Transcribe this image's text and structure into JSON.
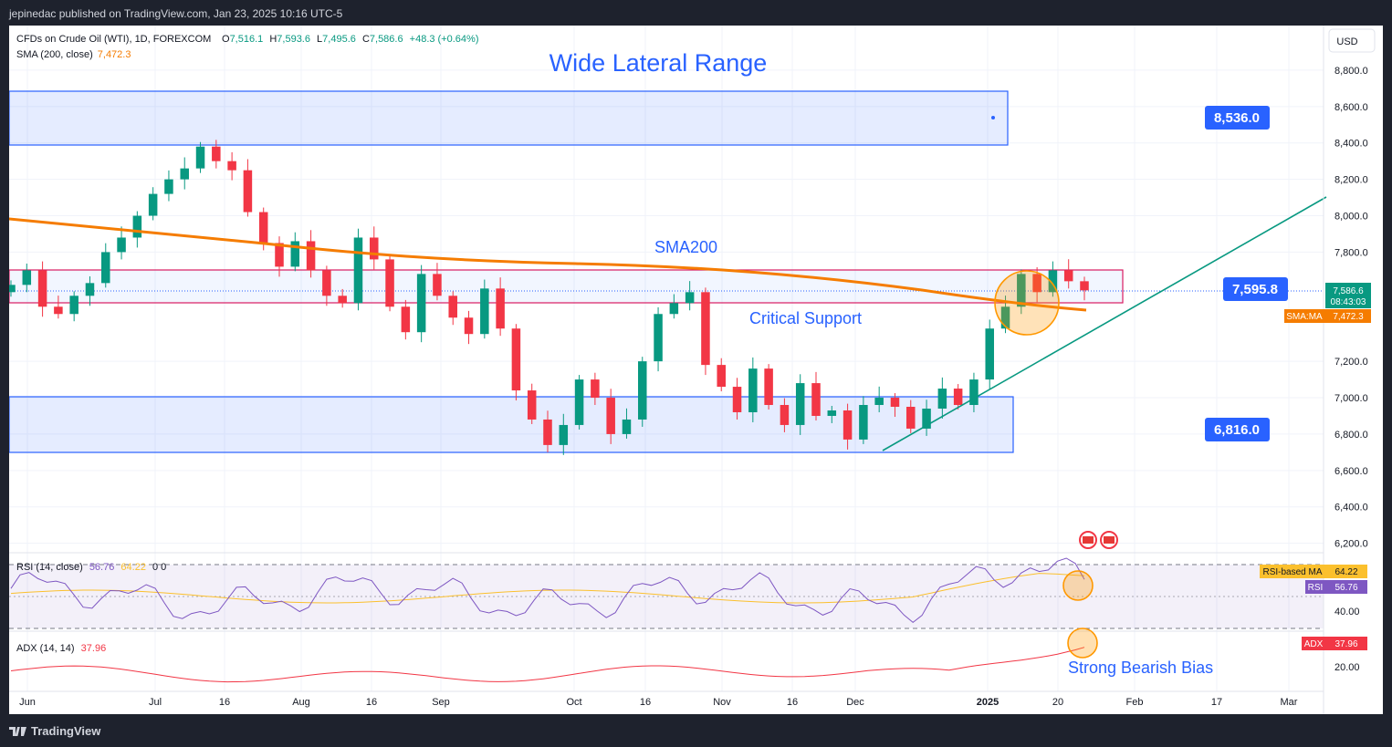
{
  "header": {
    "publisher": "jepinedac published on TradingView.com, Jan 23, 2025 10:16 UTC-5"
  },
  "legend": {
    "symbol": "CFDs on Crude Oil (WTI), 1D, FOREXCOM",
    "o_label": "O",
    "o": "7,516.1",
    "h_label": "H",
    "h": "7,593.6",
    "l_label": "L",
    "l": "7,495.6",
    "c_label": "C",
    "c": "7,586.6",
    "change": "+48.3 (+0.64%)",
    "sma_label": "SMA (200, close)",
    "sma_value": "7,472.3"
  },
  "annotations": {
    "title": "Wide Lateral Range",
    "sma200": "SMA200",
    "critical_support": "Critical Support",
    "strong_bias": "Strong Bearish Bias",
    "level_top": "8,536.0",
    "level_mid": "7,595.8",
    "level_bottom": "6,816.0"
  },
  "price_axis": {
    "currency": "USD",
    "ticks": [
      "8,800.0",
      "8,600.0",
      "8,400.0",
      "8,200.0",
      "8,000.0",
      "7,800.0",
      "7,200.0",
      "7,000.0",
      "6,800.0",
      "6,600.0",
      "6,400.0",
      "6,200.0"
    ],
    "last_price": "7,586.6",
    "countdown": "08:43:03",
    "sma_tag_label": "SMA:MA",
    "sma_tag_value": "7,472.3"
  },
  "rsi": {
    "label": "RSI (14, close)",
    "value": "56.76",
    "ma_value": "64.22",
    "extra": "0  0",
    "ma_tag_label": "RSI-based MA",
    "ma_tag_value": "64.22",
    "tag_label": "RSI",
    "tag_value": "56.76",
    "tick_40": "40.00"
  },
  "adx": {
    "label": "ADX (14, 14)",
    "value": "37.96",
    "tag_label": "ADX",
    "tag_value": "37.96",
    "tick_20": "20.00"
  },
  "time_axis": [
    "Jun",
    "Jul",
    "16",
    "Aug",
    "16",
    "Sep",
    "Oct",
    "16",
    "Nov",
    "16",
    "Dec",
    "2025",
    "20",
    "Feb",
    "17",
    "Mar"
  ],
  "footer": {
    "brand": "TradingView"
  },
  "colors": {
    "up": "#089981",
    "down": "#f23645",
    "sma": "#f57c00",
    "zone": "#2962ff",
    "support": "#d81b60",
    "trend": "#089981",
    "rsi": "#7e57c2",
    "rsi_ma": "#fbc02d",
    "adx": "#f23645"
  },
  "chart_data": {
    "type": "candlestick",
    "symbol": "CFDs on Crude Oil (WTI)",
    "interval": "1D",
    "y_axis_range": [
      6100,
      8950
    ],
    "sma200_endpoints": [
      {
        "date": "Jun",
        "value": 7970
      },
      {
        "date": "2025-01-23",
        "value": 7472.3
      }
    ],
    "zones": [
      {
        "name": "upper range",
        "low": 8370,
        "high": 8680
      },
      {
        "name": "Critical Support",
        "low": 7510,
        "high": 7690
      },
      {
        "name": "lower range",
        "low": 6690,
        "high": 7000
      }
    ],
    "levels": [
      8536.0,
      7595.8,
      6816.0
    ],
    "trendline": [
      {
        "date": "Dec 6",
        "value": 6700
      },
      {
        "date": "Mar",
        "value": 8100
      }
    ],
    "closes_approx": [
      7620,
      7700,
      7500,
      7460,
      7560,
      7630,
      7800,
      7880,
      8000,
      8120,
      8200,
      8260,
      8380,
      8300,
      8250,
      8020,
      7850,
      7720,
      7860,
      7700,
      7560,
      7520,
      7880,
      7760,
      7500,
      7360,
      7680,
      7560,
      7440,
      7350,
      7600,
      7380,
      7040,
      6880,
      6740,
      6850,
      7100,
      7000,
      6800,
      6880,
      7200,
      7460,
      7520,
      7580,
      7180,
      7060,
      6920,
      7160,
      6960,
      6850,
      7080,
      6900,
      6930,
      6770,
      6960,
      7000,
      6950,
      6830,
      6940,
      7050,
      6960,
      7100,
      7380,
      7500,
      7680,
      7580,
      7700,
      7640,
      7590
    ],
    "rsi": {
      "current": 56.76,
      "ma": 64.22,
      "levels": [
        70,
        50,
        30
      ]
    },
    "adx": {
      "current": 37.96
    }
  }
}
